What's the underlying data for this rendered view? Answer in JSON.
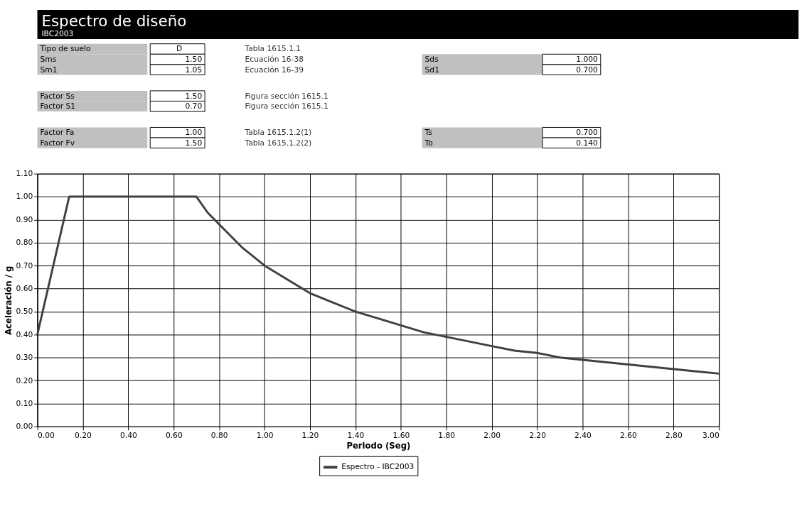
{
  "chart_data": {
    "type": "line",
    "title": "Espectro de diseño",
    "subtitle": "IBC2003",
    "xlabel": "Periodo (Seg)",
    "ylabel": "Aceleración / g",
    "annotations": [
      "Tipo de suelo",
      "D",
      "Tabla 1615.1.1",
      "Sms",
      "1.50",
      "Ecuación 16-38",
      "Sds",
      "1.000",
      "Sm1",
      "1.05",
      "Ecuación 16-39",
      "Sd1",
      "0.700",
      "Factor Ss",
      "1.50",
      "Figura sección 1615.1",
      "Factor S1",
      "0.70",
      "Figura sección 1615.1",
      "Factor Fa",
      "1.00",
      "Tabla 1615.1.2(1)",
      "Ts",
      "0.700",
      "Factor Fv",
      "1.50",
      "Tabla 1615.1.2(2)",
      "To",
      "0.140"
    ],
    "x": [
      0,
      0.14,
      0.7,
      0.75,
      0.8,
      0.9,
      1.0,
      1.1,
      1.2,
      1.3,
      1.4,
      1.5,
      1.6,
      1.7,
      1.8,
      1.9,
      2.0,
      2.1,
      2.2,
      2.3,
      2.4,
      2.5,
      2.6,
      2.7,
      2.8,
      2.9,
      3.0
    ],
    "series": [
      {
        "name": "Espectro - IBC2003",
        "color": "#404040",
        "values": [
          0.4,
          1.0,
          1.0,
          0.93,
          0.88,
          0.78,
          0.7,
          0.64,
          0.58,
          0.54,
          0.5,
          0.47,
          0.44,
          0.41,
          0.39,
          0.37,
          0.35,
          0.33,
          0.32,
          0.3,
          0.29,
          0.28,
          0.27,
          0.26,
          0.25,
          0.24,
          0.23
        ]
      }
    ],
    "xlim": [
      0,
      3
    ],
    "ylim": [
      0,
      1.1
    ],
    "xticks": [
      {
        "value": 0,
        "label": "0.00"
      },
      {
        "value": 0.2,
        "label": "0.20"
      },
      {
        "value": 0.4,
        "label": "0.40"
      },
      {
        "value": 0.6,
        "label": "0.60"
      },
      {
        "value": 0.8,
        "label": "0.80"
      },
      {
        "value": 1.0,
        "label": "1.00"
      },
      {
        "value": 1.2,
        "label": "1.20"
      },
      {
        "value": 1.4,
        "label": "1.40"
      },
      {
        "value": 1.6,
        "label": "1.60"
      },
      {
        "value": 1.8,
        "label": "1.80"
      },
      {
        "value": 2.0,
        "label": "2.00"
      },
      {
        "value": 2.2,
        "label": "2.20"
      },
      {
        "value": 2.4,
        "label": "2.40"
      },
      {
        "value": 2.6,
        "label": "2.60"
      },
      {
        "value": 2.8,
        "label": "2.80"
      },
      {
        "value": 3.0,
        "label": "3.00"
      }
    ],
    "yticks": [
      {
        "value": 0,
        "label": "0.00"
      },
      {
        "value": 0.1,
        "label": "0.10"
      },
      {
        "value": 0.2,
        "label": "0.20"
      },
      {
        "value": 0.3,
        "label": "0.30"
      },
      {
        "value": 0.4,
        "label": "0.40"
      },
      {
        "value": 0.5,
        "label": "0.50"
      },
      {
        "value": 0.6,
        "label": "0.60"
      },
      {
        "value": 0.7,
        "label": "0.70"
      },
      {
        "value": 0.8,
        "label": "0.80"
      },
      {
        "value": 0.9,
        "label": "0.90"
      },
      {
        "value": 1.0,
        "label": "1.00"
      },
      {
        "value": 1.1,
        "label": "1.10"
      }
    ],
    "grid": true,
    "legend": "bottom",
    "marker": "none",
    "line_style": "solid"
  }
}
